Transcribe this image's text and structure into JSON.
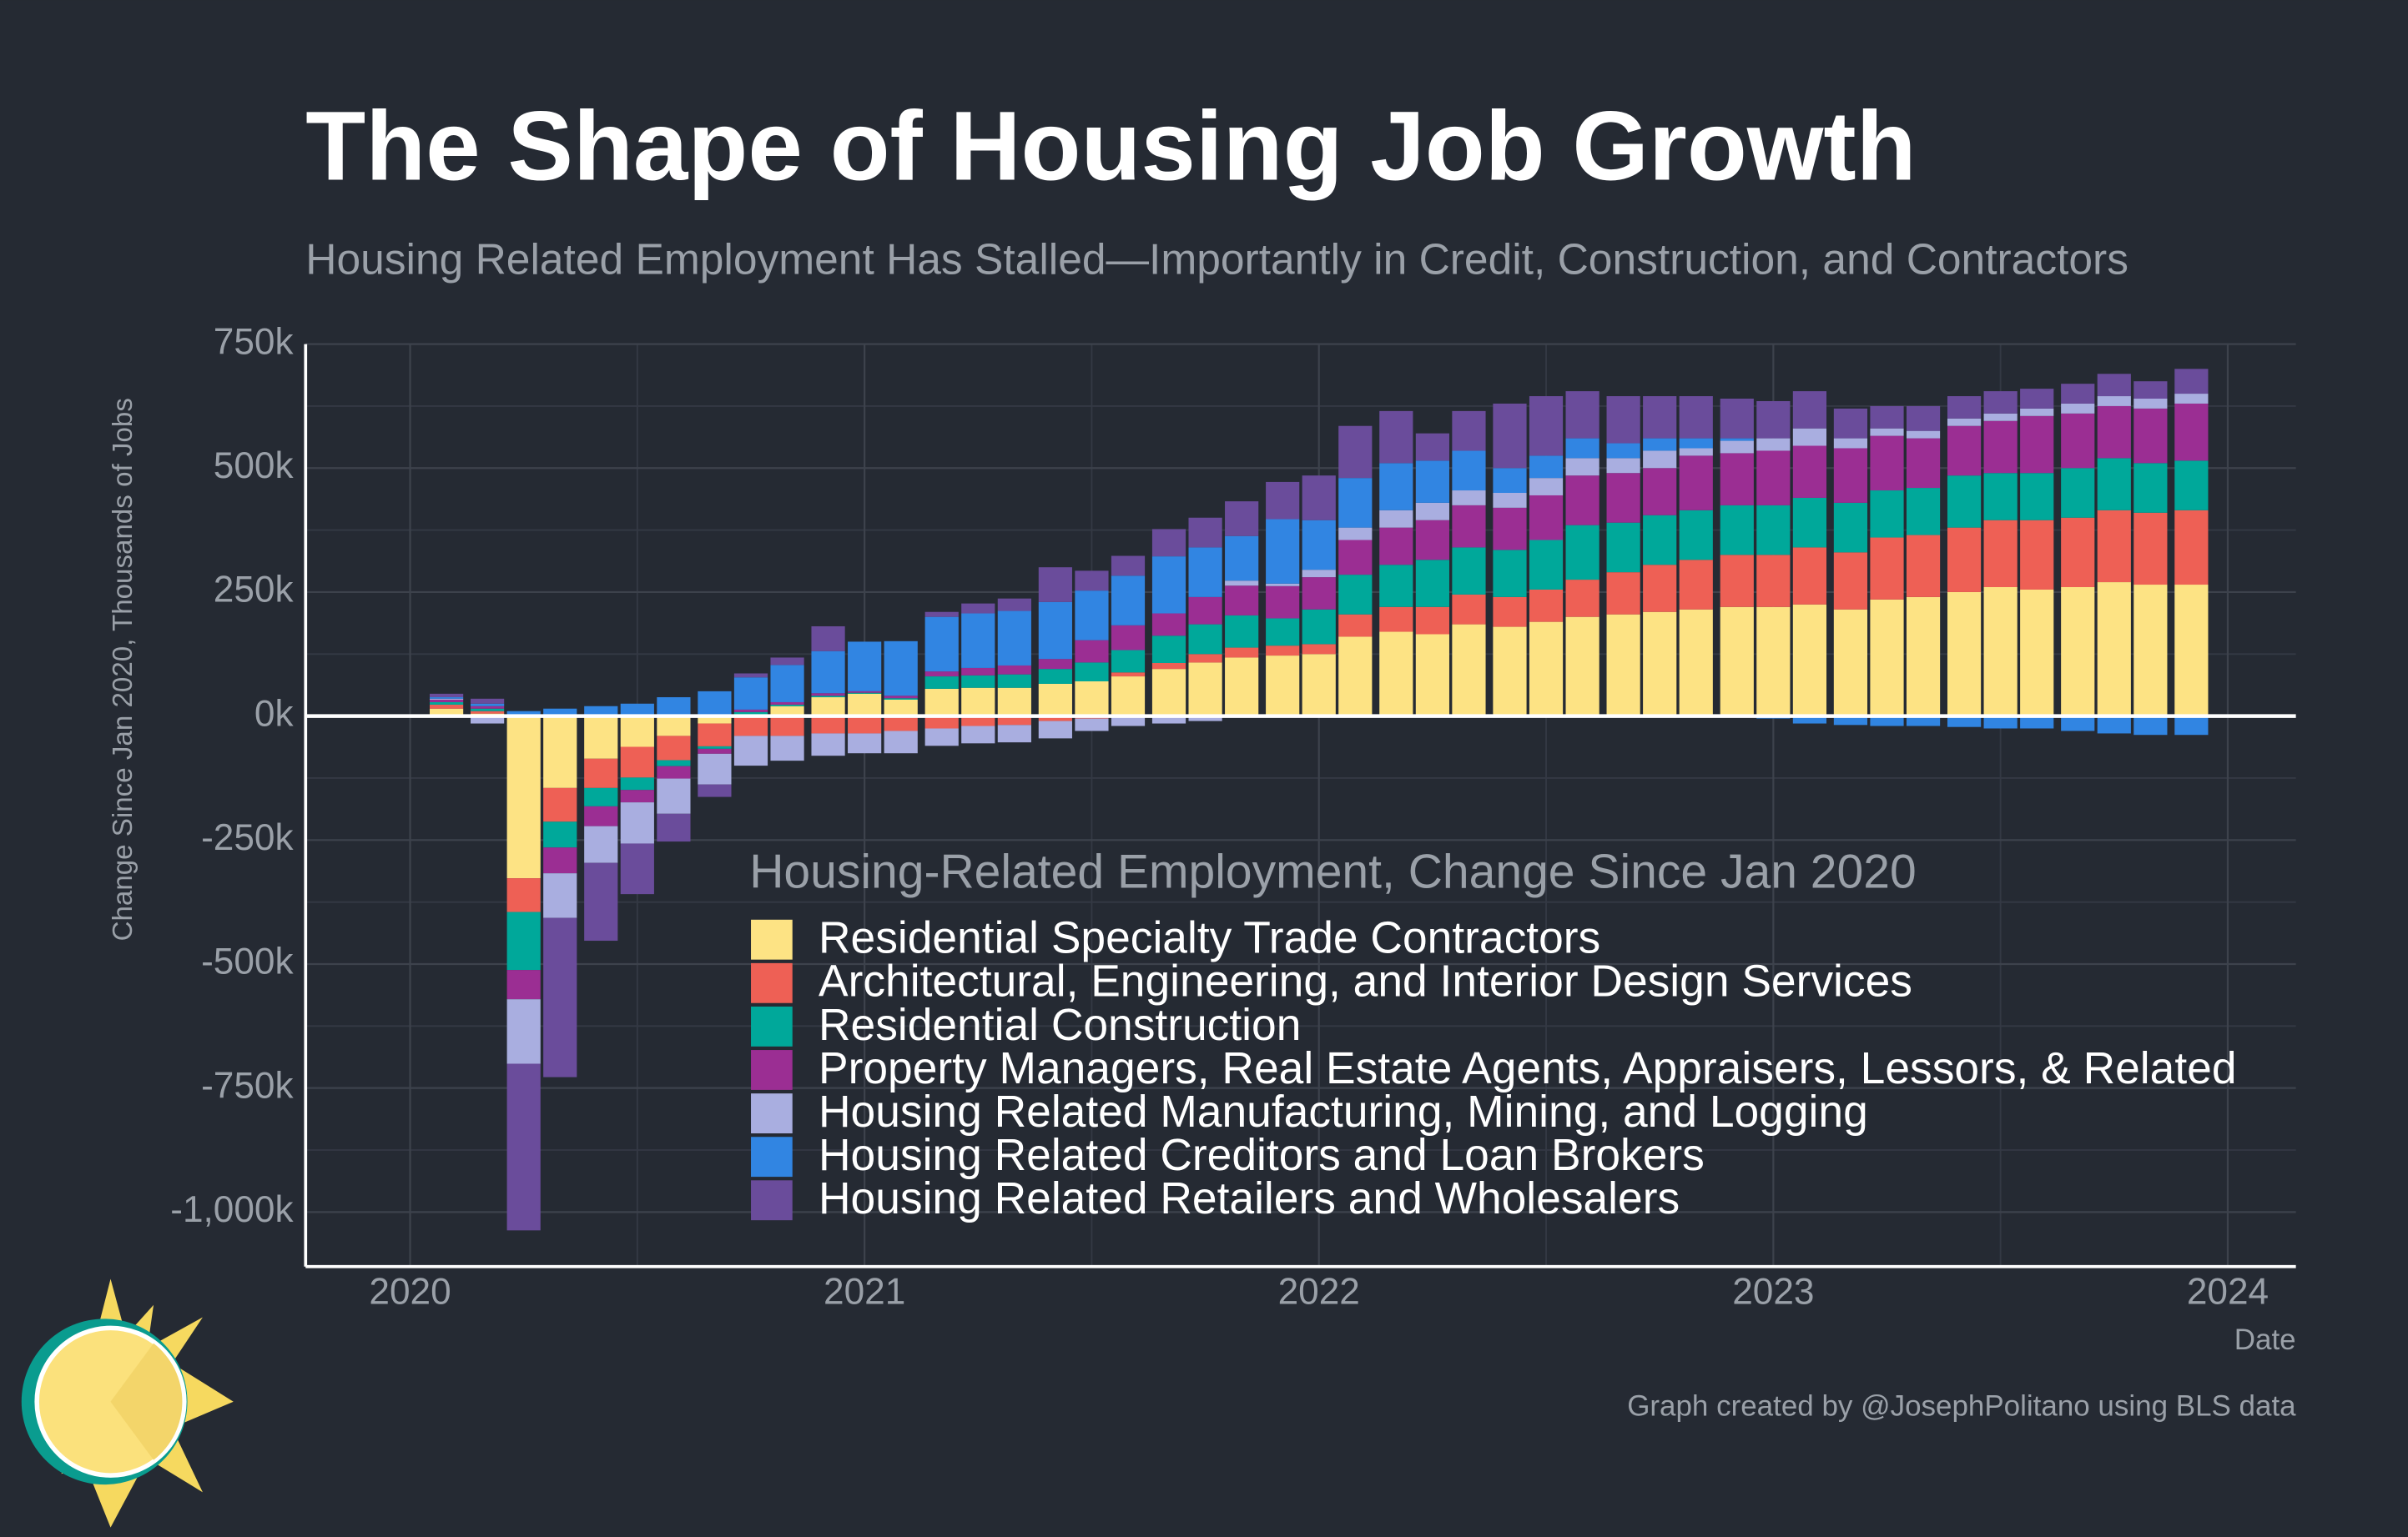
{
  "chart_data": {
    "type": "stacked_bar",
    "title": "The Shape of Housing Job Growth",
    "subtitle": "Housing Related Employment Has Stalled—Importantly in Credit, Construction, and Contractors",
    "y_label": "Change Since Jan 2020, Thousands of Jobs",
    "x_label": "Date",
    "legend_title": "Housing-Related Employment, Change Since Jan 2020",
    "caption": "Graph created by @JosephPolitano using BLS data",
    "grid": true,
    "xlim": [
      2019.77,
      2024.15
    ],
    "xticks": [
      2020,
      2021,
      2022,
      2023,
      2024
    ],
    "ylim": [
      -1110,
      750
    ],
    "yticks": [
      {
        "value": 750,
        "label": "750k"
      },
      {
        "value": 500,
        "label": "500k"
      },
      {
        "value": 250,
        "label": "250k"
      },
      {
        "value": 0,
        "label": "0k"
      },
      {
        "value": -250,
        "label": "-250k"
      },
      {
        "value": -500,
        "label": "-500k"
      },
      {
        "value": -750,
        "label": "-750k"
      },
      {
        "value": -1000,
        "label": "-1,000k"
      }
    ],
    "x": [
      2020.08,
      2020.17,
      2020.25,
      2020.33,
      2020.42,
      2020.5,
      2020.58,
      2020.67,
      2020.75,
      2020.83,
      2020.92,
      2021.0,
      2021.08,
      2021.17,
      2021.25,
      2021.33,
      2021.42,
      2021.5,
      2021.58,
      2021.67,
      2021.75,
      2021.83,
      2021.92,
      2022.0,
      2022.08,
      2022.17,
      2022.25,
      2022.33,
      2022.42,
      2022.5,
      2022.58,
      2022.67,
      2022.75,
      2022.83,
      2022.92,
      2023.0,
      2023.08,
      2023.17,
      2023.25,
      2023.33,
      2023.42,
      2023.5,
      2023.58,
      2023.67,
      2023.75,
      2023.83,
      2023.92
    ],
    "series": [
      {
        "name": "Residential Specialty Trade Contractors",
        "color": "#fde384",
        "values": [
          15,
          5,
          -327,
          -145,
          -86,
          -62,
          -40,
          -15,
          3,
          20,
          38,
          45,
          33,
          55,
          57,
          57,
          65,
          70,
          80,
          95,
          108,
          118,
          122,
          125,
          160,
          170,
          165,
          185,
          180,
          190,
          200,
          205,
          210,
          215,
          220,
          220,
          225,
          215,
          235,
          240,
          250,
          260,
          255,
          260,
          270,
          265,
          265
        ]
      },
      {
        "name": "Architectural, Engineering, and Interior Design Services",
        "color": "#ee6055",
        "values": [
          8,
          5,
          -68,
          -68,
          -59,
          -62,
          -49,
          -46,
          -40,
          -40,
          -35,
          -35,
          -30,
          -25,
          -20,
          -18,
          -10,
          -5,
          8,
          12,
          17,
          20,
          20,
          20,
          45,
          50,
          55,
          60,
          60,
          65,
          75,
          85,
          95,
          100,
          105,
          105,
          115,
          115,
          125,
          125,
          130,
          135,
          140,
          140,
          145,
          145,
          150
        ]
      },
      {
        "name": "Residential Construction",
        "color": "#00a89a",
        "values": [
          5,
          5,
          -117,
          -52,
          -37,
          -25,
          -12,
          -5,
          5,
          3,
          3,
          2,
          3,
          25,
          25,
          27,
          30,
          38,
          45,
          55,
          60,
          65,
          55,
          70,
          80,
          85,
          95,
          95,
          95,
          100,
          110,
          100,
          100,
          100,
          100,
          100,
          100,
          100,
          95,
          95,
          105,
          95,
          95,
          100,
          105,
          100,
          100
        ]
      },
      {
        "name": "Property Managers, Real Estate Agents, Appraisers, Lessors, & Related",
        "color": "#9b2e93",
        "values": [
          5,
          5,
          -59,
          -52,
          -40,
          -25,
          -25,
          -10,
          5,
          5,
          5,
          3,
          5,
          10,
          15,
          18,
          20,
          45,
          50,
          45,
          55,
          60,
          65,
          65,
          70,
          75,
          80,
          85,
          85,
          90,
          100,
          100,
          95,
          110,
          105,
          110,
          105,
          110,
          110,
          100,
          100,
          105,
          115,
          110,
          105,
          110,
          115
        ]
      },
      {
        "name": "Housing Related Manufacturing, Mining, and Logging",
        "color": "#a9aee0",
        "values": [
          2,
          -15,
          -130,
          -90,
          -74,
          -83,
          -71,
          -62,
          -60,
          -50,
          -45,
          -40,
          -45,
          -35,
          -35,
          -35,
          -35,
          -25,
          -20,
          -15,
          -10,
          10,
          5,
          15,
          25,
          35,
          35,
          30,
          30,
          35,
          35,
          30,
          35,
          15,
          25,
          25,
          35,
          20,
          15,
          15,
          15,
          15,
          15,
          20,
          20,
          20,
          20
        ]
      },
      {
        "name": "Housing Related Creditors and Loan Brokers",
        "color": "#3185e2",
        "values": [
          3,
          5,
          10,
          15,
          20,
          25,
          38,
          50,
          65,
          75,
          85,
          100,
          110,
          110,
          110,
          110,
          115,
          100,
          100,
          115,
          100,
          90,
          130,
          100,
          100,
          95,
          85,
          80,
          50,
          45,
          40,
          30,
          25,
          20,
          5,
          -5,
          -15,
          -18,
          -20,
          -20,
          -22,
          -25,
          -25,
          -30,
          -35,
          -38,
          -38
        ]
      },
      {
        "name": "Housing Related Retailers and Wholesalers",
        "color": "#6a4c9b",
        "values": [
          7,
          10,
          -336,
          -321,
          -157,
          -102,
          -56,
          -25,
          8,
          15,
          50,
          0,
          0,
          10,
          20,
          25,
          70,
          40,
          40,
          55,
          60,
          70,
          75,
          90,
          105,
          105,
          55,
          80,
          130,
          120,
          95,
          95,
          85,
          85,
          80,
          75,
          75,
          60,
          45,
          50,
          45,
          45,
          40,
          40,
          45,
          35,
          50
        ]
      }
    ]
  }
}
